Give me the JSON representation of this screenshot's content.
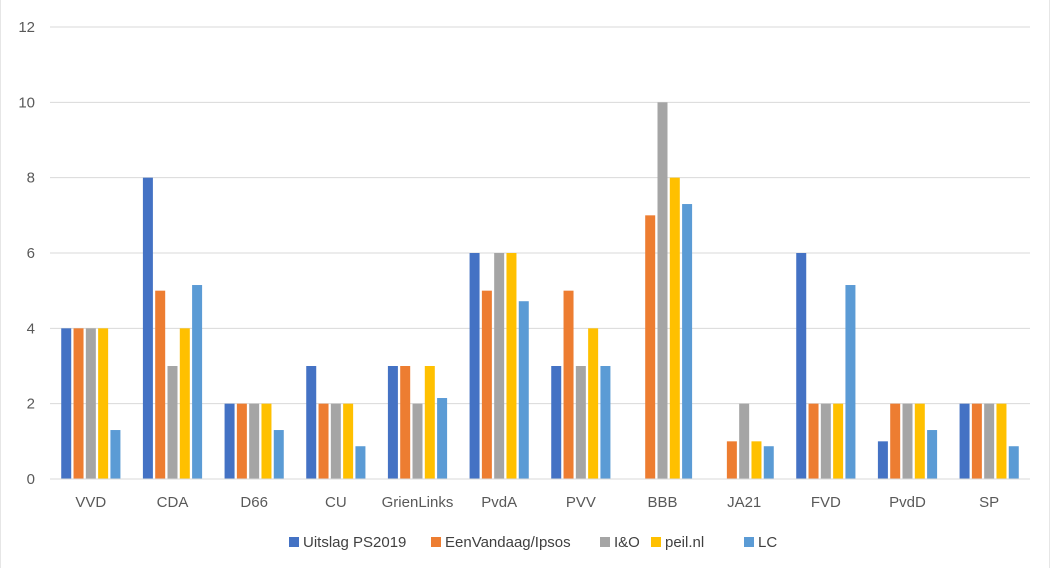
{
  "chart_data": {
    "type": "bar",
    "categories": [
      "VVD",
      "CDA",
      "D66",
      "CU",
      "GrienLinks",
      "PvdA",
      "PVV",
      "BBB",
      "JA21",
      "FVD",
      "PvdD",
      "SP"
    ],
    "series": [
      {
        "name": "Uitslag PS2019",
        "color": "#4472C4",
        "values": [
          4,
          8,
          2,
          3,
          3,
          6,
          3,
          0,
          0,
          6,
          1,
          2
        ]
      },
      {
        "name": "EenVandaag/Ipsos",
        "color": "#ED7D31",
        "values": [
          4,
          5,
          2,
          2,
          3,
          5,
          5,
          7,
          1,
          2,
          2,
          2
        ]
      },
      {
        "name": "I&O",
        "color": "#A5A5A5",
        "values": [
          4,
          3,
          2,
          2,
          2,
          6,
          3,
          10,
          2,
          2,
          2,
          2
        ]
      },
      {
        "name": "peil.nl",
        "color": "#FFC000",
        "values": [
          4,
          4,
          2,
          2,
          3,
          6,
          4,
          8,
          1,
          2,
          2,
          2
        ]
      },
      {
        "name": "LC",
        "color": "#5B9BD5",
        "values": [
          1.3,
          5.15,
          1.3,
          0.87,
          2.15,
          4.72,
          3,
          7.3,
          0.87,
          5.15,
          1.3,
          0.87
        ]
      }
    ],
    "ylim": [
      0,
      12
    ],
    "yticks": [
      "0",
      "2",
      "4",
      "6",
      "8",
      "10",
      "12"
    ],
    "grid": true,
    "legend_position": "bottom"
  }
}
